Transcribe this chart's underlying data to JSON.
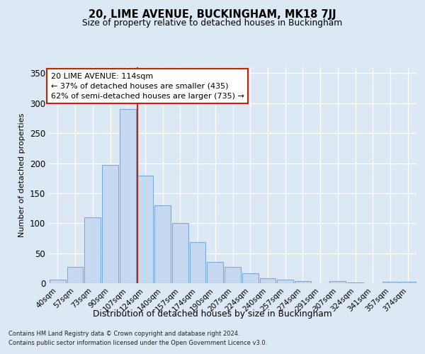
{
  "title1": "20, LIME AVENUE, BUCKINGHAM, MK18 7JJ",
  "title2": "Size of property relative to detached houses in Buckingham",
  "xlabel": "Distribution of detached houses by size in Buckingham",
  "ylabel": "Number of detached properties",
  "categories": [
    "40sqm",
    "57sqm",
    "73sqm",
    "90sqm",
    "107sqm",
    "124sqm",
    "140sqm",
    "157sqm",
    "174sqm",
    "190sqm",
    "207sqm",
    "224sqm",
    "240sqm",
    "257sqm",
    "274sqm",
    "291sqm",
    "307sqm",
    "324sqm",
    "341sqm",
    "357sqm",
    "374sqm"
  ],
  "values": [
    6,
    27,
    110,
    197,
    290,
    180,
    130,
    100,
    68,
    35,
    27,
    17,
    8,
    6,
    4,
    0,
    3,
    1,
    0,
    2,
    2
  ],
  "bar_color": "#c6d9f0",
  "bar_edge_color": "#7aabda",
  "red_line_x": 4.55,
  "annotation_title": "20 LIME AVENUE: 114sqm",
  "annotation_line1": "← 37% of detached houses are smaller (435)",
  "annotation_line2": "62% of semi-detached houses are larger (735) →",
  "footnote1": "Contains HM Land Registry data © Crown copyright and database right 2024.",
  "footnote2": "Contains public sector information licensed under the Open Government Licence v3.0.",
  "bg_color": "#dde8f5",
  "ylim_max": 360,
  "yticks": [
    0,
    50,
    100,
    150,
    200,
    250,
    300,
    350
  ]
}
